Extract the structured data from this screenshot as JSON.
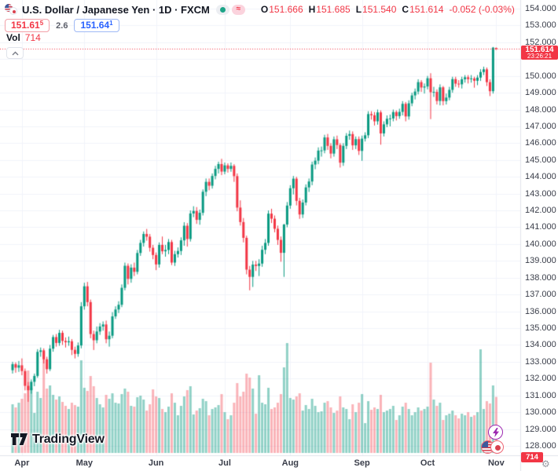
{
  "header": {
    "symbol_title": "U.S. Dollar / Japanese Yen · 1D · FXCM",
    "status": {
      "delayed_symbol": "≈"
    },
    "ohlc": {
      "o_label": "O",
      "o": "151.666",
      "h_label": "H",
      "h": "151.685",
      "l_label": "L",
      "l": "151.540",
      "c_label": "C",
      "c": "151.614",
      "change": "-0.052 (-0.03%)"
    },
    "quote": {
      "bid_main": "151.61",
      "bid_sup": "5",
      "spread": "2.6",
      "ask_main": "151.64",
      "ask_sup": "1"
    },
    "volume_label": "Vol",
    "volume_value": "714"
  },
  "axis": {
    "price_badge": {
      "value": "151.614",
      "countdown": "23:26:21"
    },
    "volume_badge": "714"
  },
  "footer": {
    "logo_text": "TradingView"
  },
  "icons": [
    "pair-flags-logo",
    "market-open-dot",
    "delayed-data-badge",
    "legend-collapse-chevron",
    "lightning-bolt",
    "us-flag",
    "jp-flag",
    "gear"
  ],
  "colors": {
    "up": "#089981",
    "down": "#f23645",
    "vol_up": "rgba(8,153,129,0.45)",
    "vol_down": "rgba(242,54,69,0.38)",
    "grid": "#f0f3fa",
    "axis_border": "#e0e3eb",
    "price_line": "#f23645",
    "accent_ask": "#2962ff",
    "text": "#131722"
  },
  "chart_data": {
    "type": "candlestick+volume",
    "title": "U.S. Dollar / Japanese Yen",
    "interval": "1D",
    "exchange": "FXCM",
    "legend_position": "top-left",
    "grid": true,
    "y_axis": {
      "min": 128,
      "max": 154,
      "step": 1,
      "decimals": 3
    },
    "x_axis_months": [
      {
        "label": "Apr",
        "index": 3
      },
      {
        "label": "May",
        "index": 23
      },
      {
        "label": "Jun",
        "index": 46
      },
      {
        "label": "Jul",
        "index": 68
      },
      {
        "label": "Aug",
        "index": 89
      },
      {
        "label": "Sep",
        "index": 112
      },
      {
        "label": "Oct",
        "index": 133
      },
      {
        "label": "Nov",
        "index": 155
      }
    ],
    "last_price": 151.614,
    "countdown": "23:26:21",
    "last_volume": 714,
    "candles_format": [
      "open",
      "high",
      "low",
      "close",
      "volume"
    ],
    "candles": [
      [
        132.5,
        133.0,
        132.3,
        132.86,
        620
      ],
      [
        132.86,
        132.97,
        132.35,
        132.65,
        580
      ],
      [
        132.65,
        133.05,
        132.4,
        132.79,
        640
      ],
      [
        132.79,
        133.2,
        132.2,
        132.45,
        690
      ],
      [
        132.45,
        132.6,
        131.3,
        131.57,
        760
      ],
      [
        131.57,
        131.8,
        130.62,
        131.31,
        1050
      ],
      [
        131.31,
        131.95,
        131.1,
        131.81,
        830
      ],
      [
        131.81,
        132.3,
        131.55,
        132.16,
        510
      ],
      [
        132.16,
        133.75,
        132.05,
        133.59,
        780
      ],
      [
        133.59,
        133.85,
        133.3,
        133.68,
        700
      ],
      [
        133.68,
        133.8,
        132.9,
        133.15,
        1290
      ],
      [
        133.15,
        133.3,
        132.3,
        132.56,
        820
      ],
      [
        132.56,
        134.0,
        132.45,
        133.78,
        860
      ],
      [
        133.78,
        134.6,
        133.6,
        134.47,
        740
      ],
      [
        134.47,
        134.65,
        133.9,
        134.12,
        680
      ],
      [
        134.12,
        134.9,
        133.95,
        134.72,
        720
      ],
      [
        134.72,
        134.85,
        134.0,
        134.24,
        650
      ],
      [
        134.24,
        134.45,
        133.85,
        134.16,
        600
      ],
      [
        134.16,
        134.5,
        133.95,
        134.22,
        560
      ],
      [
        134.22,
        134.35,
        133.4,
        133.71,
        640
      ],
      [
        133.71,
        133.9,
        133.2,
        133.47,
        610
      ],
      [
        133.47,
        134.15,
        133.3,
        133.97,
        590
      ],
      [
        133.97,
        136.55,
        133.8,
        136.3,
        1180
      ],
      [
        136.3,
        137.7,
        136.1,
        137.49,
        830
      ],
      [
        137.49,
        137.75,
        136.3,
        136.55,
        790
      ],
      [
        136.55,
        136.7,
        134.4,
        134.65,
        980
      ],
      [
        134.65,
        134.85,
        133.7,
        134.28,
        850
      ],
      [
        134.28,
        135.1,
        134.1,
        134.8,
        700
      ],
      [
        134.8,
        135.3,
        134.6,
        135.1,
        620
      ],
      [
        135.1,
        135.4,
        134.85,
        135.22,
        580
      ],
      [
        135.22,
        135.45,
        134.1,
        134.34,
        740
      ],
      [
        134.34,
        134.8,
        133.9,
        134.55,
        690
      ],
      [
        134.55,
        135.95,
        134.4,
        135.7,
        760
      ],
      [
        135.7,
        136.3,
        135.55,
        136.11,
        640
      ],
      [
        136.11,
        136.6,
        135.9,
        136.39,
        630
      ],
      [
        136.39,
        137.6,
        136.25,
        137.4,
        750
      ],
      [
        137.4,
        138.9,
        137.25,
        138.71,
        820
      ],
      [
        138.71,
        138.85,
        137.6,
        137.93,
        780
      ],
      [
        137.93,
        138.8,
        137.7,
        138.6,
        600
      ],
      [
        138.6,
        138.9,
        138.1,
        138.35,
        590
      ],
      [
        138.35,
        139.65,
        138.2,
        139.47,
        710
      ],
      [
        139.47,
        140.25,
        139.3,
        140.07,
        730
      ],
      [
        140.07,
        140.75,
        139.85,
        140.6,
        680
      ],
      [
        140.6,
        140.9,
        140.2,
        140.44,
        540
      ],
      [
        140.44,
        140.6,
        139.55,
        139.78,
        620
      ],
      [
        139.78,
        139.95,
        139.1,
        139.35,
        810
      ],
      [
        139.35,
        139.5,
        138.45,
        138.79,
        720
      ],
      [
        138.79,
        140.1,
        138.6,
        139.95,
        700
      ],
      [
        139.95,
        140.45,
        139.4,
        139.57,
        560
      ],
      [
        139.57,
        139.95,
        139.25,
        139.65,
        520
      ],
      [
        139.65,
        140.3,
        139.4,
        140.12,
        590
      ],
      [
        140.12,
        140.25,
        138.75,
        138.9,
        760
      ],
      [
        138.9,
        139.6,
        138.7,
        139.4,
        640
      ],
      [
        139.4,
        139.8,
        139.2,
        139.59,
        480
      ],
      [
        139.59,
        140.4,
        139.35,
        140.22,
        600
      ],
      [
        140.22,
        141.3,
        139.9,
        141.09,
        720
      ],
      [
        141.09,
        141.25,
        139.85,
        140.3,
        800
      ],
      [
        140.3,
        142.0,
        140.15,
        141.82,
        850
      ],
      [
        141.82,
        142.25,
        141.6,
        141.97,
        490
      ],
      [
        141.97,
        142.2,
        141.2,
        141.44,
        540
      ],
      [
        141.44,
        142.05,
        141.15,
        141.86,
        570
      ],
      [
        141.86,
        143.25,
        141.7,
        143.11,
        690
      ],
      [
        143.11,
        143.9,
        142.85,
        143.7,
        660
      ],
      [
        143.7,
        143.9,
        143.2,
        143.47,
        480
      ],
      [
        143.47,
        144.2,
        143.3,
        144.05,
        560
      ],
      [
        144.05,
        144.65,
        143.85,
        144.47,
        580
      ],
      [
        144.47,
        144.9,
        144.2,
        144.76,
        610
      ],
      [
        144.76,
        145.07,
        144.1,
        144.31,
        750
      ],
      [
        144.31,
        144.85,
        144.15,
        144.68,
        520
      ],
      [
        144.68,
        144.8,
        144.25,
        144.47,
        430
      ],
      [
        144.47,
        144.85,
        144.3,
        144.65,
        480
      ],
      [
        144.65,
        144.75,
        143.7,
        144.04,
        640
      ],
      [
        144.04,
        144.2,
        141.95,
        142.17,
        890
      ],
      [
        142.17,
        142.6,
        141.1,
        141.31,
        720
      ],
      [
        141.31,
        141.55,
        140.1,
        140.37,
        780
      ],
      [
        140.37,
        140.5,
        138.2,
        138.48,
        1010
      ],
      [
        138.48,
        138.7,
        137.25,
        138.05,
        960
      ],
      [
        138.05,
        139.0,
        137.45,
        138.78,
        820
      ],
      [
        138.78,
        139.0,
        138.4,
        138.7,
        500
      ],
      [
        138.7,
        139.1,
        138.1,
        138.84,
        990
      ],
      [
        138.84,
        139.9,
        138.65,
        139.66,
        640
      ],
      [
        139.66,
        140.3,
        139.4,
        140.07,
        620
      ],
      [
        140.07,
        142.0,
        139.9,
        141.81,
        830
      ],
      [
        141.81,
        142.1,
        141.25,
        141.51,
        560
      ],
      [
        141.51,
        141.7,
        140.7,
        140.91,
        580
      ],
      [
        140.91,
        141.1,
        139.95,
        140.25,
        640
      ],
      [
        140.25,
        140.45,
        138.95,
        139.48,
        750
      ],
      [
        139.48,
        141.2,
        138.05,
        141.16,
        1090
      ],
      [
        141.16,
        142.5,
        141.0,
        142.29,
        1400
      ],
      [
        142.29,
        143.5,
        142.1,
        143.32,
        700
      ],
      [
        143.32,
        144.05,
        142.95,
        143.89,
        680
      ],
      [
        143.89,
        144.0,
        142.3,
        142.57,
        720
      ],
      [
        142.57,
        142.75,
        141.5,
        141.76,
        760
      ],
      [
        141.76,
        142.65,
        141.55,
        142.47,
        540
      ],
      [
        142.47,
        143.55,
        142.3,
        143.37,
        610
      ],
      [
        143.37,
        143.9,
        143.1,
        143.72,
        560
      ],
      [
        143.72,
        144.9,
        143.5,
        144.73,
        690
      ],
      [
        144.73,
        145.15,
        144.45,
        144.96,
        600
      ],
      [
        144.96,
        145.75,
        144.75,
        145.56,
        520
      ],
      [
        145.56,
        145.8,
        145.2,
        145.57,
        530
      ],
      [
        145.57,
        146.5,
        145.4,
        146.34,
        640
      ],
      [
        146.34,
        146.55,
        145.6,
        145.84,
        660
      ],
      [
        145.84,
        146.0,
        145.1,
        145.38,
        580
      ],
      [
        145.38,
        146.4,
        145.2,
        146.23,
        510
      ],
      [
        146.23,
        146.45,
        145.65,
        145.89,
        540
      ],
      [
        145.89,
        146.0,
        144.55,
        144.84,
        720
      ],
      [
        144.84,
        146.0,
        144.65,
        145.84,
        580
      ],
      [
        145.84,
        146.6,
        145.65,
        146.44,
        560
      ],
      [
        146.44,
        146.75,
        146.2,
        146.54,
        430
      ],
      [
        146.54,
        146.7,
        145.6,
        145.87,
        620
      ],
      [
        145.87,
        146.4,
        145.65,
        146.24,
        520
      ],
      [
        146.24,
        146.4,
        145.3,
        145.54,
        640
      ],
      [
        145.54,
        146.45,
        144.95,
        146.27,
        750
      ],
      [
        146.27,
        146.65,
        146.1,
        146.47,
        380
      ],
      [
        146.47,
        147.9,
        146.3,
        147.73,
        660
      ],
      [
        147.73,
        147.9,
        147.4,
        147.66,
        550
      ],
      [
        147.66,
        147.85,
        147.05,
        147.3,
        580
      ],
      [
        147.3,
        148.0,
        147.1,
        147.83,
        560
      ],
      [
        147.83,
        147.95,
        145.91,
        146.58,
        740
      ],
      [
        146.58,
        147.3,
        146.4,
        147.12,
        520
      ],
      [
        147.12,
        147.65,
        146.95,
        147.45,
        540
      ],
      [
        147.45,
        147.7,
        147.0,
        147.47,
        560
      ],
      [
        147.47,
        148.0,
        147.3,
        147.85,
        600
      ],
      [
        147.85,
        147.95,
        147.35,
        147.61,
        420
      ],
      [
        147.61,
        148.05,
        147.45,
        147.86,
        480
      ],
      [
        147.86,
        148.5,
        147.65,
        148.34,
        590
      ],
      [
        148.34,
        148.45,
        147.3,
        147.59,
        640
      ],
      [
        147.59,
        148.55,
        147.4,
        148.37,
        560
      ],
      [
        148.37,
        149.0,
        148.2,
        148.84,
        480
      ],
      [
        148.84,
        149.25,
        148.6,
        149.07,
        520
      ],
      [
        149.07,
        149.8,
        148.9,
        149.63,
        580
      ],
      [
        149.63,
        149.75,
        149.05,
        149.31,
        540
      ],
      [
        149.31,
        149.55,
        148.95,
        149.37,
        560
      ],
      [
        149.37,
        150.0,
        149.2,
        149.86,
        590
      ],
      [
        149.86,
        150.16,
        147.43,
        149.03,
        1150
      ],
      [
        149.03,
        149.35,
        148.75,
        149.05,
        680
      ],
      [
        149.05,
        149.2,
        148.3,
        148.51,
        600
      ],
      [
        148.51,
        149.5,
        148.25,
        149.32,
        640
      ],
      [
        149.32,
        149.4,
        148.25,
        148.5,
        420
      ],
      [
        148.5,
        148.95,
        148.3,
        148.71,
        480
      ],
      [
        148.71,
        149.35,
        148.55,
        149.17,
        500
      ],
      [
        149.17,
        149.95,
        149.0,
        149.81,
        540
      ],
      [
        149.81,
        149.95,
        149.35,
        149.54,
        480
      ],
      [
        149.54,
        149.75,
        149.3,
        149.5,
        440
      ],
      [
        149.5,
        149.95,
        149.25,
        149.8,
        500
      ],
      [
        149.8,
        150.05,
        149.6,
        149.92,
        480
      ],
      [
        149.92,
        150.05,
        149.55,
        149.81,
        520
      ],
      [
        149.81,
        150.05,
        149.6,
        149.85,
        460
      ],
      [
        149.85,
        149.95,
        149.3,
        149.71,
        480
      ],
      [
        149.71,
        150.05,
        149.45,
        149.9,
        520
      ],
      [
        149.9,
        150.4,
        149.7,
        150.23,
        1320
      ],
      [
        150.23,
        150.55,
        150.05,
        150.39,
        560
      ],
      [
        150.39,
        150.5,
        149.4,
        149.63,
        660
      ],
      [
        149.63,
        149.8,
        148.8,
        149.09,
        630
      ],
      [
        149.09,
        151.72,
        148.95,
        151.68,
        860
      ],
      [
        151.666,
        151.685,
        151.54,
        151.614,
        714
      ]
    ]
  }
}
